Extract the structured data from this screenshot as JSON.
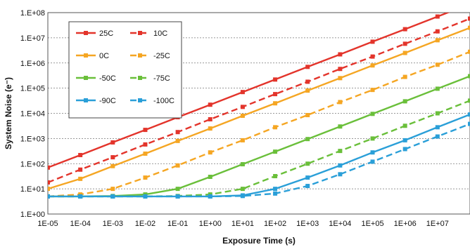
{
  "chart_data": {
    "type": "line",
    "xlabel": "Exposure Time (s)",
    "ylabel": "System Noise (e⁻)",
    "x_scale": "log",
    "y_scale": "log",
    "xlim": [
      1e-05,
      100000000.0
    ],
    "ylim": [
      1,
      100000000.0
    ],
    "x_tick_labels": [
      "1E-05",
      "1E-04",
      "1E-03",
      "1E-02",
      "1E-01",
      "1E+00",
      "1E+01",
      "1E+02",
      "1E+03",
      "1E+04",
      "1E+05",
      "1E+06",
      "1E+07"
    ],
    "y_tick_labels": [
      "1.E+00",
      "1.E+01",
      "1.E+02",
      "1.E+03",
      "1.E+04",
      "1.E+05",
      "1.E+06",
      "1.E+07",
      "1.E+08"
    ],
    "grid": "horizontal dashed",
    "legend_position": "top-left",
    "x": [
      1e-05,
      0.0001,
      0.001,
      0.01,
      0.1,
      1,
      10,
      100,
      1000,
      10000,
      100000,
      1000000,
      10000000,
      100000000
    ],
    "series": [
      {
        "name": "25C",
        "color": "#e3342b",
        "dash": "solid",
        "values": [
          70,
          220,
          700,
          2200,
          7000,
          22000,
          70000,
          220000,
          700000,
          2200000,
          7000000,
          22000000,
          70000000,
          220000000
        ]
      },
      {
        "name": "10C",
        "color": "#e3342b",
        "dash": "dashed",
        "values": [
          18,
          58,
          180,
          580,
          1800,
          5800,
          18000,
          58000,
          180000,
          580000,
          1800000,
          5800000,
          18000000,
          58000000
        ]
      },
      {
        "name": "0C",
        "color": "#f5a623",
        "dash": "solid",
        "values": [
          10,
          25,
          80,
          250,
          800,
          2500,
          8000,
          25000,
          80000,
          250000,
          800000,
          2500000,
          8000000,
          25000000
        ]
      },
      {
        "name": "-25C",
        "color": "#f5a623",
        "dash": "dashed",
        "values": [
          5,
          6,
          10,
          28,
          85,
          280,
          850,
          2800,
          8500,
          28000,
          85000,
          280000,
          850000,
          2800000
        ]
      },
      {
        "name": "-50C",
        "color": "#6abf3a",
        "dash": "solid",
        "values": [
          5,
          5,
          5.2,
          6,
          10,
          30,
          95,
          300,
          950,
          3000,
          9500,
          30000,
          95000,
          300000
        ]
      },
      {
        "name": "-75C",
        "color": "#6abf3a",
        "dash": "dashed",
        "values": [
          5,
          5,
          5,
          5,
          5.2,
          6,
          10,
          32,
          100,
          320,
          1000,
          3200,
          10000,
          32000
        ]
      },
      {
        "name": "-90C",
        "color": "#2a9fd8",
        "dash": "solid",
        "values": [
          5,
          5,
          5,
          5,
          5,
          5,
          5.5,
          10,
          28,
          85,
          280,
          850,
          2800,
          9000
        ]
      },
      {
        "name": "-100C",
        "color": "#2a9fd8",
        "dash": "dashed",
        "values": [
          5,
          5,
          5,
          5,
          5,
          5,
          5.2,
          6.5,
          13,
          38,
          120,
          380,
          1200,
          3800
        ]
      }
    ]
  }
}
